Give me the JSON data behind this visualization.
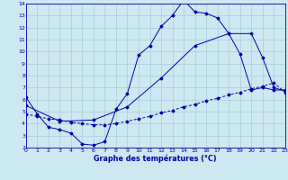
{
  "title": "Graphe des températures (°C)",
  "bg_color": "#cce8f0",
  "grid_color": "#aaccdd",
  "line_color": "#0000aa",
  "xlim": [
    0,
    23
  ],
  "ylim": [
    2,
    14
  ],
  "xticks": [
    0,
    1,
    2,
    3,
    4,
    5,
    6,
    7,
    8,
    9,
    10,
    11,
    12,
    13,
    14,
    15,
    16,
    17,
    18,
    19,
    20,
    21,
    22,
    23
  ],
  "yticks": [
    2,
    3,
    4,
    5,
    6,
    7,
    8,
    9,
    10,
    11,
    12,
    13,
    14
  ],
  "curve_main_x": [
    0,
    1,
    2,
    3,
    4,
    5,
    6,
    7,
    8,
    9,
    10,
    11,
    12,
    13,
    14,
    15,
    16,
    17,
    18,
    19,
    20,
    21,
    22,
    23
  ],
  "curve_main_y": [
    6.2,
    4.8,
    3.7,
    3.5,
    3.2,
    2.3,
    2.2,
    2.5,
    5.2,
    6.5,
    9.7,
    10.5,
    12.1,
    13.0,
    14.3,
    13.3,
    13.2,
    12.8,
    11.5,
    9.8,
    6.8,
    7.0,
    6.8,
    6.8
  ],
  "curve_diag_x": [
    0,
    1,
    2,
    3,
    4,
    5,
    6,
    7,
    8,
    9,
    10,
    11,
    12,
    13,
    14,
    15,
    16,
    17,
    18,
    19,
    20,
    21,
    22,
    23
  ],
  "curve_diag_y": [
    4.8,
    4.6,
    4.4,
    4.3,
    4.1,
    4.0,
    3.9,
    3.9,
    4.0,
    4.2,
    4.4,
    4.6,
    4.9,
    5.1,
    5.4,
    5.6,
    5.9,
    6.1,
    6.4,
    6.6,
    6.9,
    7.1,
    7.4,
    6.6
  ],
  "curve_3h_x": [
    0,
    3,
    6,
    9,
    12,
    15,
    18,
    20,
    21,
    22,
    23
  ],
  "curve_3h_y": [
    5.5,
    4.2,
    4.3,
    5.4,
    7.8,
    10.5,
    11.5,
    11.5,
    9.5,
    7.0,
    6.7
  ]
}
